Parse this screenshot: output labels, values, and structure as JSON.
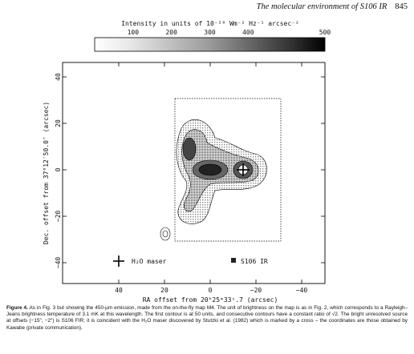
{
  "header": {
    "title": "The molecular environment of S106 IR",
    "page": "845"
  },
  "figure": {
    "colorbar_label": "Intensity in units of 10⁻²⁰ Wm⁻² Hz⁻¹ arcsec⁻²",
    "colorbar_ticks": [
      "100",
      "200",
      "300",
      "400",
      "500"
    ],
    "y_label": "Dec. offset from 37°12′50.0″ (arcsec)",
    "y_ticks": [
      "40",
      "20",
      "0",
      "−20",
      "−40"
    ],
    "x_label": "RA offset from 20ʰ25ᵐ33ˢ.7 (arcsec)",
    "x_ticks": [
      "40",
      "20",
      "0",
      "−20",
      "−40"
    ],
    "legend": [
      "H₂O maser",
      "S106 IR"
    ]
  },
  "caption": {
    "label": "Figure 4.",
    "text": "As in Fig. 3 but showing the 450-µm emission, made from the on-the-fly map M4. The unit of brightness on the map is as in Fig. 2, which corresponds to a Rayleigh–Jeans brightness temperature of 3.1 mK at this wavelength. The first contour is at 50 units, and consecutive contours have a constant ratio of √2. The bright unresolved source at offsets (−15″, −2″) is S106 FIR; it is coincident with the H₂O maser discovered by Stutzki et al. (1982) which is marked by a cross – the coordinates are those obtained by Kawabe (private communication)."
  }
}
